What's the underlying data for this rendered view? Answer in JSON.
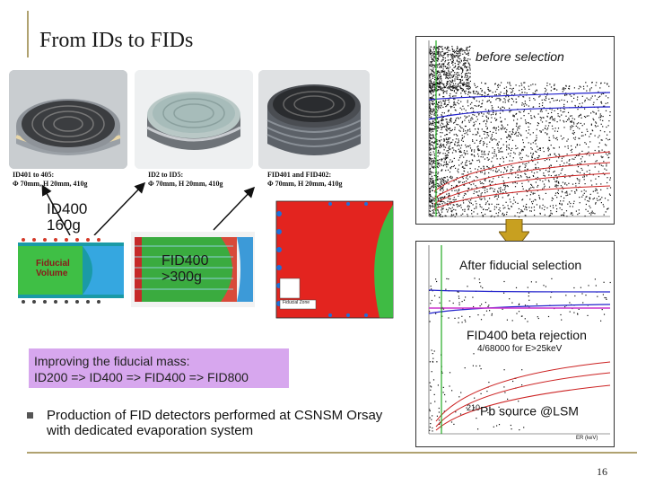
{
  "slide": {
    "title": "From IDs to FIDs",
    "page_number": "16"
  },
  "photos": [
    {
      "caption_l1": "ID401 to 405:",
      "caption_l2": "Φ 70mm, H 20mm, 410g"
    },
    {
      "caption_l1": "ID2 to ID5:",
      "caption_l2": "Φ 70mm, H 20mm, 410g"
    },
    {
      "caption_l1": "FID401 and FID402:",
      "caption_l2": "Φ 70mm, H 20mm, 410g"
    }
  ],
  "detector_labels": {
    "id400": "ID400",
    "id400_mass": "160g",
    "fiducial_volume_l1": "Fiducial",
    "fiducial_volume_l2": "Volume",
    "fid400": "FID400",
    "fid400_mass": ">300g"
  },
  "plots": {
    "top_label": "before selection",
    "middle_label": "After fiducial selection",
    "rejection_title": "FID400 beta rejection",
    "rejection_detail": "4/68000 for E>25keV",
    "source_superscript": "210",
    "source_text": "Pb source @LSM",
    "fiducial_legend": "Fiducial Zone",
    "axis_er": "ER (keV)",
    "axis_q": "Q"
  },
  "box": {
    "line1": "Improving the fiducial mass:",
    "line2": "ID200 => ID400 => FID400 => FID800"
  },
  "bullet": {
    "text": "Production of FID detectors performed at CSNSM Orsay with dedicated evaporation system"
  },
  "colors": {
    "accent_line": "#b0a270",
    "box_bg": "#d7a7ee",
    "arrow": "#c8a020"
  }
}
